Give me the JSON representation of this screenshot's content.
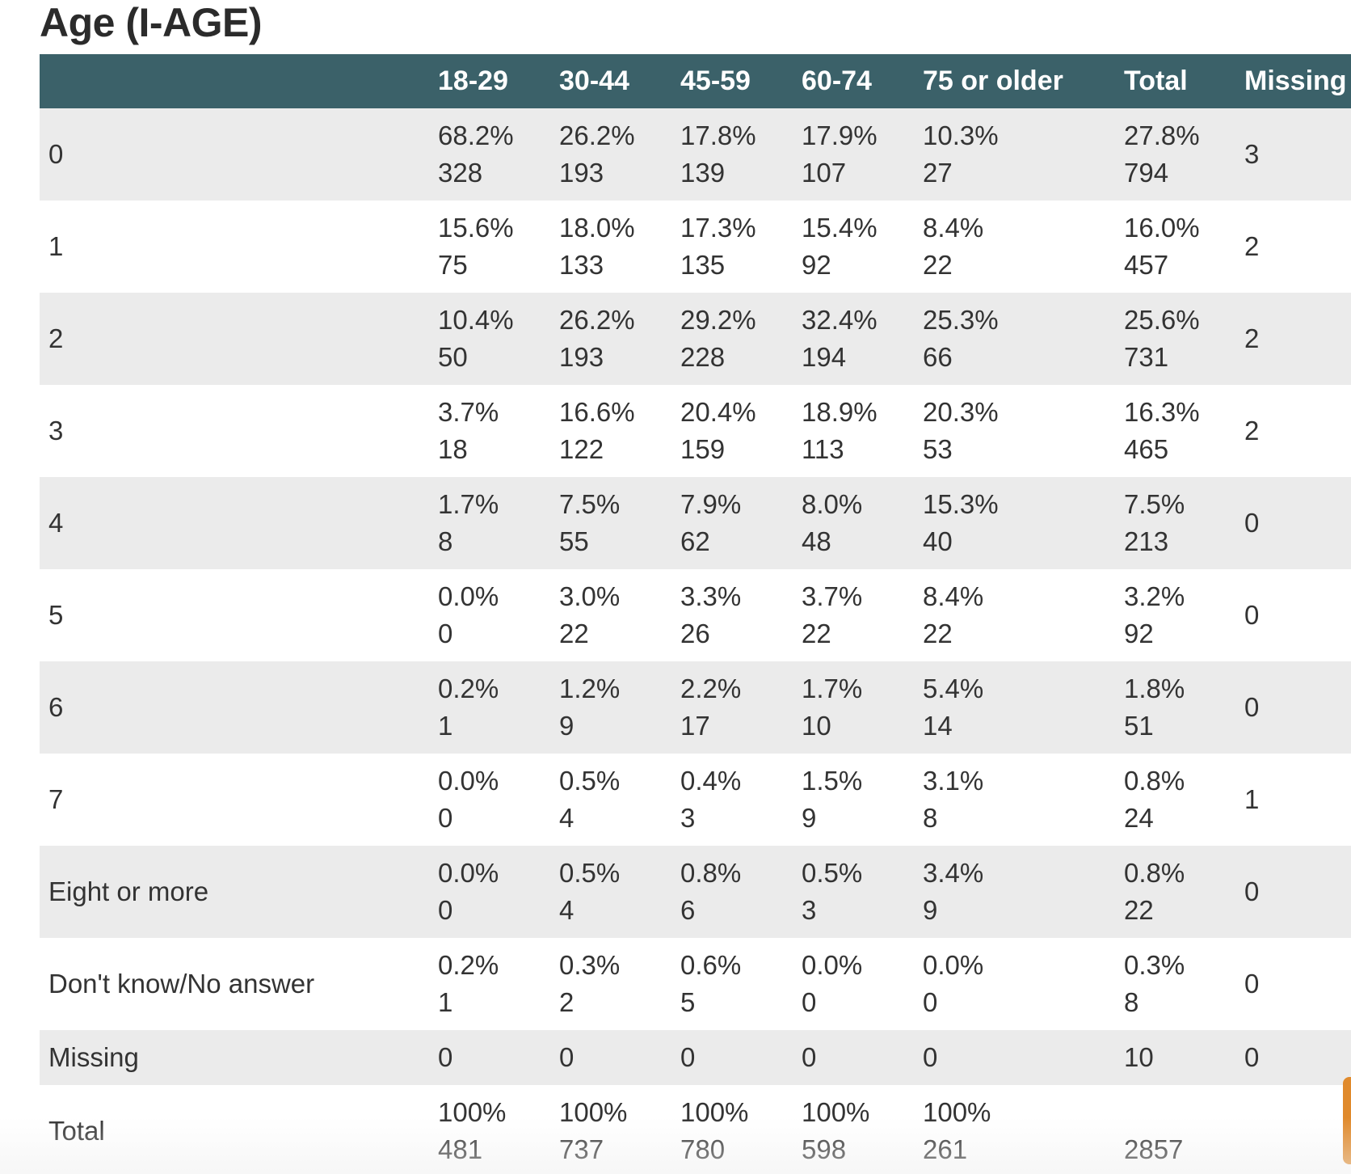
{
  "title": "Age (I-AGE)",
  "columns": {
    "label": "",
    "c1": "18-29",
    "c2": "30-44",
    "c3": "45-59",
    "c4": "60-74",
    "c5": "75 or older",
    "total": "Total",
    "missing": "Missing"
  },
  "rows": [
    {
      "label": "0",
      "cells": [
        {
          "pct": "68.2%",
          "n": "328"
        },
        {
          "pct": "26.2%",
          "n": "193"
        },
        {
          "pct": "17.8%",
          "n": "139"
        },
        {
          "pct": "17.9%",
          "n": "107"
        },
        {
          "pct": "10.3%",
          "n": "27"
        },
        {
          "pct": "27.8%",
          "n": "794"
        }
      ],
      "missing": "3"
    },
    {
      "label": "1",
      "cells": [
        {
          "pct": "15.6%",
          "n": "75"
        },
        {
          "pct": "18.0%",
          "n": "133"
        },
        {
          "pct": "17.3%",
          "n": "135"
        },
        {
          "pct": "15.4%",
          "n": "92"
        },
        {
          "pct": "8.4%",
          "n": "22"
        },
        {
          "pct": "16.0%",
          "n": "457"
        }
      ],
      "missing": "2"
    },
    {
      "label": "2",
      "cells": [
        {
          "pct": "10.4%",
          "n": "50"
        },
        {
          "pct": "26.2%",
          "n": "193"
        },
        {
          "pct": "29.2%",
          "n": "228"
        },
        {
          "pct": "32.4%",
          "n": "194"
        },
        {
          "pct": "25.3%",
          "n": "66"
        },
        {
          "pct": "25.6%",
          "n": "731"
        }
      ],
      "missing": "2"
    },
    {
      "label": "3",
      "cells": [
        {
          "pct": "3.7%",
          "n": "18"
        },
        {
          "pct": "16.6%",
          "n": "122"
        },
        {
          "pct": "20.4%",
          "n": "159"
        },
        {
          "pct": "18.9%",
          "n": "113"
        },
        {
          "pct": "20.3%",
          "n": "53"
        },
        {
          "pct": "16.3%",
          "n": "465"
        }
      ],
      "missing": "2"
    },
    {
      "label": "4",
      "cells": [
        {
          "pct": "1.7%",
          "n": "8"
        },
        {
          "pct": "7.5%",
          "n": "55"
        },
        {
          "pct": "7.9%",
          "n": "62"
        },
        {
          "pct": "8.0%",
          "n": "48"
        },
        {
          "pct": "15.3%",
          "n": "40"
        },
        {
          "pct": "7.5%",
          "n": "213"
        }
      ],
      "missing": "0"
    },
    {
      "label": "5",
      "cells": [
        {
          "pct": "0.0%",
          "n": "0"
        },
        {
          "pct": "3.0%",
          "n": "22"
        },
        {
          "pct": "3.3%",
          "n": "26"
        },
        {
          "pct": "3.7%",
          "n": "22"
        },
        {
          "pct": "8.4%",
          "n": "22"
        },
        {
          "pct": "3.2%",
          "n": "92"
        }
      ],
      "missing": "0"
    },
    {
      "label": "6",
      "cells": [
        {
          "pct": "0.2%",
          "n": "1"
        },
        {
          "pct": "1.2%",
          "n": "9"
        },
        {
          "pct": "2.2%",
          "n": "17"
        },
        {
          "pct": "1.7%",
          "n": "10"
        },
        {
          "pct": "5.4%",
          "n": "14"
        },
        {
          "pct": "1.8%",
          "n": "51"
        }
      ],
      "missing": "0"
    },
    {
      "label": "7",
      "cells": [
        {
          "pct": "0.0%",
          "n": "0"
        },
        {
          "pct": "0.5%",
          "n": "4"
        },
        {
          "pct": "0.4%",
          "n": "3"
        },
        {
          "pct": "1.5%",
          "n": "9"
        },
        {
          "pct": "3.1%",
          "n": "8"
        },
        {
          "pct": "0.8%",
          "n": "24"
        }
      ],
      "missing": "1"
    },
    {
      "label": "Eight or more",
      "cells": [
        {
          "pct": "0.0%",
          "n": "0"
        },
        {
          "pct": "0.5%",
          "n": "4"
        },
        {
          "pct": "0.8%",
          "n": "6"
        },
        {
          "pct": "0.5%",
          "n": "3"
        },
        {
          "pct": "3.4%",
          "n": "9"
        },
        {
          "pct": "0.8%",
          "n": "22"
        }
      ],
      "missing": "0"
    },
    {
      "label": "Don't know/No answer",
      "cells": [
        {
          "pct": "0.2%",
          "n": "1"
        },
        {
          "pct": "0.3%",
          "n": "2"
        },
        {
          "pct": "0.6%",
          "n": "5"
        },
        {
          "pct": "0.0%",
          "n": "0"
        },
        {
          "pct": "0.0%",
          "n": "0"
        },
        {
          "pct": "0.3%",
          "n": "8"
        }
      ],
      "missing": "0"
    }
  ],
  "missing_row": {
    "label": "Missing",
    "values": [
      "0",
      "0",
      "0",
      "0",
      "0",
      "10",
      "0"
    ]
  },
  "total_row": {
    "label": "Total",
    "cells": [
      {
        "pct": "100%",
        "n": "481"
      },
      {
        "pct": "100%",
        "n": "737"
      },
      {
        "pct": "100%",
        "n": "780"
      },
      {
        "pct": "100%",
        "n": "598"
      },
      {
        "pct": "100%",
        "n": "261"
      }
    ],
    "grand_total": "2857"
  },
  "colors": {
    "header_bg": "#3b6169",
    "header_text": "#ffffff",
    "row_shade": "#ebebeb",
    "text": "#333333",
    "scroll_accent": "#e08a2c"
  }
}
